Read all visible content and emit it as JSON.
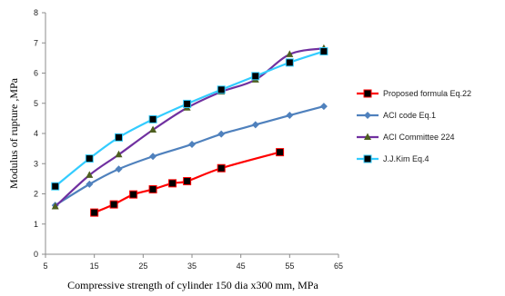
{
  "chart_data": {
    "type": "line",
    "xlabel": "Compressive  strength  of cylinder  150 dia x300 mm,  MPa",
    "ylabel": "Modulus of rupture ,MPa",
    "xlim": [
      5,
      65
    ],
    "ylim": [
      0,
      8
    ],
    "xticks": [
      5,
      15,
      25,
      35,
      45,
      55,
      65
    ],
    "yticks": [
      0,
      1,
      2,
      3,
      4,
      5,
      6,
      7,
      8
    ],
    "grid": false,
    "legend_position": "right",
    "series": [
      {
        "name": "Proposed formula Eq.22",
        "color": "#ff0000",
        "marker": "square",
        "marker_color": "#000000",
        "x": [
          15,
          19,
          23,
          27,
          31,
          34,
          41,
          53
        ],
        "y": [
          1.38,
          1.65,
          1.98,
          2.15,
          2.35,
          2.42,
          2.85,
          3.38
        ]
      },
      {
        "name": "ACI  code Eq.1",
        "color": "#4f81bd",
        "marker": "diamond",
        "marker_color": "#4f81bd",
        "x": [
          7,
          14,
          20,
          27,
          35,
          41,
          48,
          55,
          62
        ],
        "y": [
          1.62,
          2.32,
          2.82,
          3.24,
          3.64,
          3.98,
          4.29,
          4.6,
          4.9
        ]
      },
      {
        "name": "ACI Committee 224",
        "color": "#7030a0",
        "marker": "triangle",
        "marker_color": "#4e5f1f",
        "x": [
          7,
          14,
          20,
          27,
          34,
          41,
          48,
          55,
          62
        ],
        "y": [
          1.58,
          2.62,
          3.3,
          4.12,
          4.85,
          5.38,
          5.78,
          6.62,
          6.82
        ]
      },
      {
        "name": "J.J.Kim Eq.4",
        "color": "#33ccff",
        "marker": "square",
        "marker_color": "#000000",
        "x": [
          7,
          14,
          20,
          27,
          34,
          41,
          48,
          55,
          62
        ],
        "y": [
          2.25,
          3.17,
          3.87,
          4.47,
          4.98,
          5.45,
          5.9,
          6.35,
          6.72
        ]
      }
    ]
  }
}
